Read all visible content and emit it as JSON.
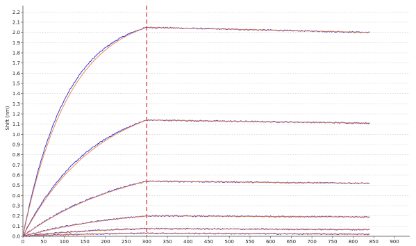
{
  "chart_data": {
    "type": "line",
    "title": "",
    "xlabel": "",
    "ylabel": "Shift (nm)",
    "xlim": [
      0,
      900
    ],
    "ylim": [
      0,
      2.25
    ],
    "x_ticks": [
      0,
      50,
      100,
      150,
      200,
      250,
      300,
      350,
      400,
      450,
      500,
      550,
      600,
      650,
      700,
      750,
      800,
      850,
      900
    ],
    "y_ticks": [
      0.0,
      0.1,
      0.2,
      0.3,
      0.4,
      0.5,
      0.6,
      0.7,
      0.8,
      0.9,
      1.0,
      1.1,
      1.2,
      1.3,
      1.4,
      1.5,
      1.6,
      1.7,
      1.8,
      1.9,
      2.0,
      2.1,
      2.2
    ],
    "grid": true,
    "association_end": 300,
    "dissociation_end": 840,
    "divider_x": 300,
    "colors": {
      "measured": "#3a3ad6",
      "fit": "#e8783a",
      "divider": "#e03030",
      "grid": "#c8c8c8"
    },
    "series": [
      {
        "plateau_start": 2.05,
        "plateau_end": 2.0,
        "kobs": 0.0095,
        "fit_kobs": 0.0088
      },
      {
        "plateau_start": 1.14,
        "plateau_end": 1.11,
        "kobs": 0.006,
        "fit_kobs": 0.0054
      },
      {
        "plateau_start": 0.54,
        "plateau_end": 0.52,
        "kobs": 0.004,
        "fit_kobs": 0.0037
      },
      {
        "plateau_start": 0.2,
        "plateau_end": 0.19,
        "kobs": 0.004,
        "fit_kobs": 0.0037
      },
      {
        "plateau_start": 0.075,
        "plateau_end": 0.065,
        "kobs": 0.005,
        "fit_kobs": 0.0047
      },
      {
        "plateau_start": 0.03,
        "plateau_end": 0.02,
        "kobs": 0.006,
        "fit_kobs": 0.0055
      }
    ]
  }
}
